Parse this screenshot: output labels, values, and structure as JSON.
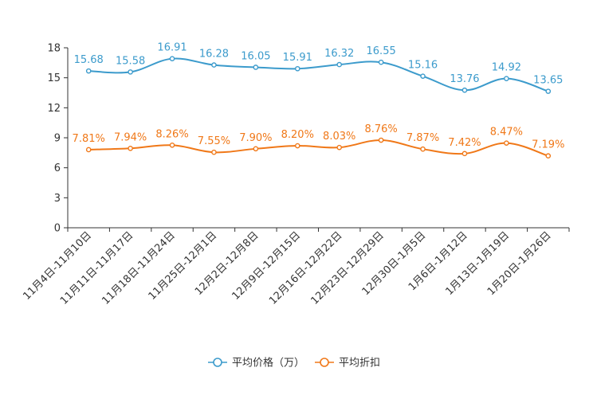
{
  "chart_data": {
    "type": "line",
    "title": "",
    "xlabel": "",
    "ylabel": "",
    "ylim": [
      0,
      18
    ],
    "yticks": [
      0,
      3,
      6,
      9,
      12,
      15,
      18
    ],
    "grid": false,
    "legend_position": "bottom",
    "categories": [
      "11月4日-11月10日",
      "11月11日-11月17日",
      "11月18日-11月24日",
      "11月25日-12月1日",
      "12月2日-12月8日",
      "12月9日-12月15日",
      "12月16日-12月22日",
      "12月23日-12月29日",
      "12月30日-1月5日",
      "1月6日-1月12日",
      "1月13日-1月19日",
      "1月20日-1月26日"
    ],
    "series": [
      {
        "name": "平均价格（万）",
        "color": "#3c9bcc",
        "values": [
          15.68,
          15.58,
          16.91,
          16.28,
          16.05,
          15.91,
          16.32,
          16.55,
          15.16,
          13.76,
          14.92,
          13.65
        ],
        "labels": [
          "15.68",
          "15.58",
          "16.91",
          "16.28",
          "16.05",
          "15.91",
          "16.32",
          "16.55",
          "15.16",
          "13.76",
          "14.92",
          "13.65"
        ]
      },
      {
        "name": "平均折扣",
        "color": "#f07818",
        "values": [
          7.81,
          7.94,
          8.26,
          7.55,
          7.9,
          8.2,
          8.03,
          8.76,
          7.87,
          7.42,
          8.47,
          7.19
        ],
        "labels": [
          "7.81%",
          "7.94%",
          "8.26%",
          "7.55%",
          "7.90%",
          "8.20%",
          "8.03%",
          "8.76%",
          "7.87%",
          "7.42%",
          "8.47%",
          "7.19%"
        ]
      }
    ]
  }
}
